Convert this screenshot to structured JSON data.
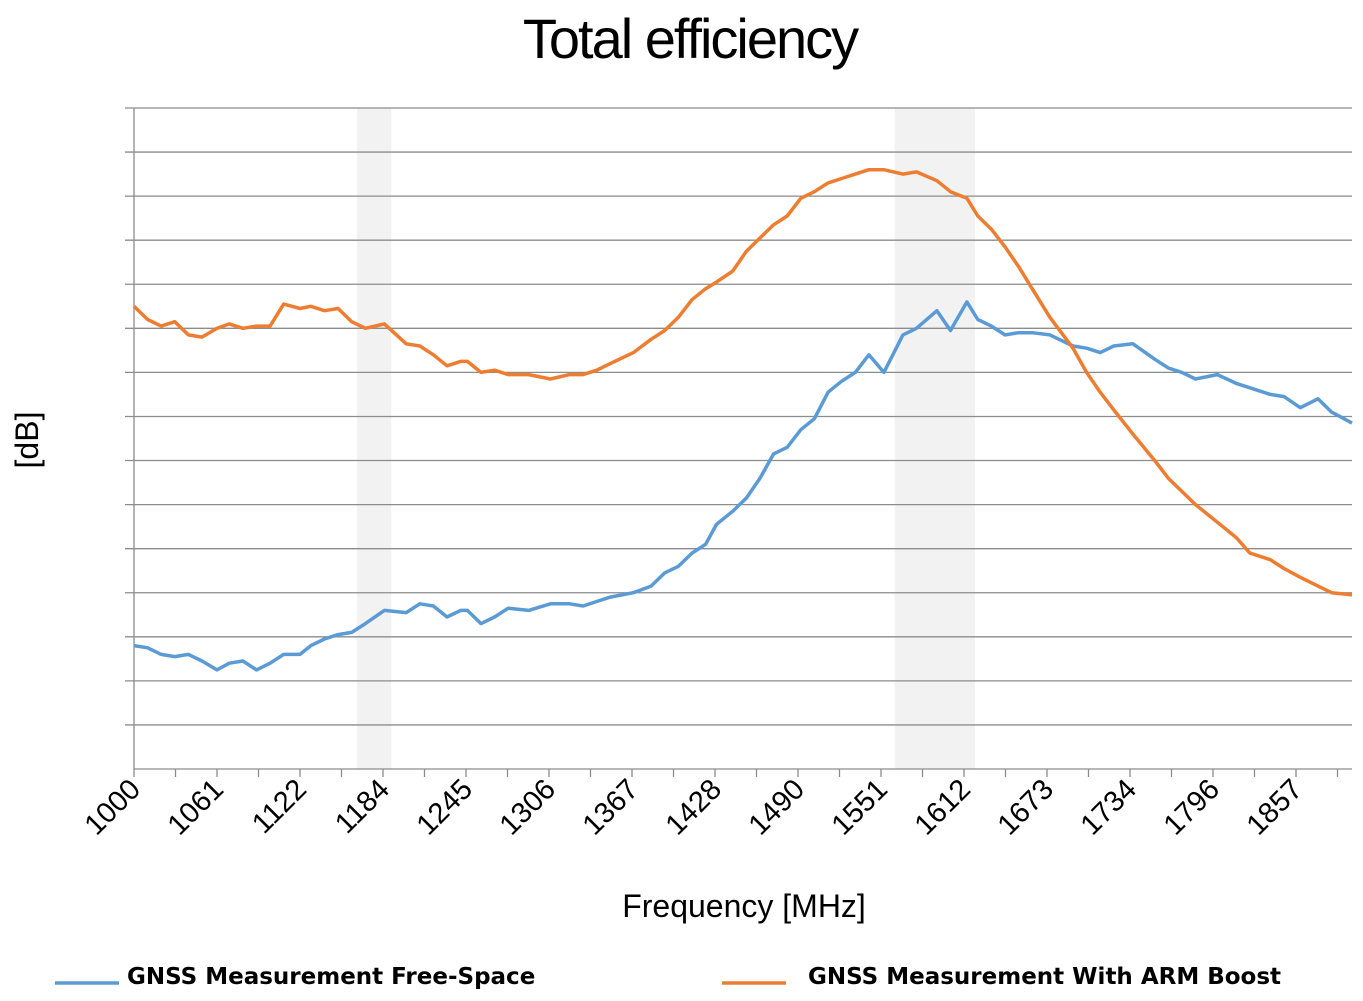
{
  "chart_data": {
    "type": "line",
    "title": "Total efficiency",
    "xlabel": "Frequency [MHz]",
    "ylabel": "[dB]",
    "xlim": [
      1000,
      1895
    ],
    "ylim": [
      0,
      15
    ],
    "grid": "horizontal",
    "legend_position": "bottom",
    "x_tick_labels": [
      "1000",
      "1061",
      "1122",
      "1184",
      "1245",
      "1306",
      "1367",
      "1428",
      "1490",
      "1551",
      "1612",
      "1673",
      "1734",
      "1796",
      "1857"
    ],
    "highlight_bands": [
      [
        1164,
        1189
      ],
      [
        1559,
        1618
      ]
    ],
    "series": [
      {
        "name": "GNSS Measurement Free-Space",
        "color": "#5b9bd5",
        "x": [
          1000,
          1010,
          1020,
          1030,
          1040,
          1050,
          1061,
          1070,
          1080,
          1090,
          1100,
          1110,
          1122,
          1130,
          1140,
          1150,
          1160,
          1170,
          1184,
          1200,
          1210,
          1220,
          1230,
          1240,
          1245,
          1255,
          1265,
          1275,
          1290,
          1306,
          1320,
          1330,
          1340,
          1350,
          1367,
          1380,
          1390,
          1400,
          1410,
          1420,
          1428,
          1440,
          1450,
          1460,
          1470,
          1480,
          1490,
          1500,
          1510,
          1520,
          1530,
          1540,
          1551,
          1565,
          1575,
          1590,
          1600,
          1612,
          1620,
          1630,
          1640,
          1650,
          1660,
          1673,
          1690,
          1700,
          1710,
          1720,
          1734,
          1750,
          1760,
          1770,
          1780,
          1796,
          1810,
          1820,
          1835,
          1845,
          1857,
          1870,
          1880,
          1895
        ],
        "y": [
          2.8,
          2.75,
          2.6,
          2.55,
          2.6,
          2.45,
          2.25,
          2.4,
          2.45,
          2.25,
          2.4,
          2.6,
          2.6,
          2.8,
          2.95,
          3.05,
          3.1,
          3.3,
          3.6,
          3.55,
          3.75,
          3.7,
          3.45,
          3.6,
          3.6,
          3.3,
          3.45,
          3.65,
          3.6,
          3.75,
          3.75,
          3.7,
          3.8,
          3.9,
          4.0,
          4.15,
          4.45,
          4.6,
          4.9,
          5.1,
          5.55,
          5.85,
          6.15,
          6.6,
          7.15,
          7.3,
          7.7,
          7.95,
          8.55,
          8.8,
          9.0,
          9.4,
          9.0,
          9.85,
          10.0,
          10.4,
          9.95,
          10.6,
          10.2,
          10.05,
          9.85,
          9.9,
          9.9,
          9.85,
          9.6,
          9.55,
          9.45,
          9.6,
          9.65,
          9.3,
          9.1,
          9.0,
          8.85,
          8.95,
          8.75,
          8.65,
          8.5,
          8.45,
          8.2,
          8.4,
          8.1,
          7.85
        ]
      },
      {
        "name": "GNSS Measurement With ARM Boost",
        "color": "#ed7d31",
        "x": [
          1000,
          1010,
          1020,
          1030,
          1040,
          1050,
          1061,
          1070,
          1080,
          1090,
          1100,
          1110,
          1122,
          1130,
          1140,
          1150,
          1160,
          1170,
          1184,
          1200,
          1210,
          1220,
          1230,
          1240,
          1245,
          1255,
          1265,
          1275,
          1290,
          1306,
          1320,
          1330,
          1340,
          1350,
          1367,
          1380,
          1390,
          1400,
          1410,
          1420,
          1428,
          1440,
          1450,
          1460,
          1470,
          1480,
          1490,
          1500,
          1510,
          1520,
          1530,
          1540,
          1551,
          1565,
          1575,
          1590,
          1600,
          1612,
          1620,
          1630,
          1640,
          1650,
          1660,
          1673,
          1690,
          1700,
          1710,
          1720,
          1734,
          1750,
          1760,
          1770,
          1780,
          1796,
          1810,
          1820,
          1835,
          1845,
          1857,
          1870,
          1880,
          1895
        ],
        "y": [
          10.5,
          10.2,
          10.05,
          10.15,
          9.85,
          9.8,
          10.0,
          10.1,
          10.0,
          10.05,
          10.05,
          10.55,
          10.45,
          10.5,
          10.4,
          10.45,
          10.15,
          10.0,
          10.1,
          9.65,
          9.6,
          9.4,
          9.15,
          9.25,
          9.25,
          9.0,
          9.05,
          8.95,
          8.95,
          8.85,
          8.95,
          8.95,
          9.05,
          9.2,
          9.45,
          9.75,
          9.95,
          10.25,
          10.65,
          10.9,
          11.05,
          11.3,
          11.75,
          12.05,
          12.35,
          12.55,
          12.95,
          13.1,
          13.3,
          13.4,
          13.5,
          13.6,
          13.6,
          13.5,
          13.55,
          13.35,
          13.1,
          12.95,
          12.55,
          12.25,
          11.85,
          11.4,
          10.9,
          10.25,
          9.55,
          9.0,
          8.55,
          8.15,
          7.6,
          7.0,
          6.6,
          6.3,
          6.0,
          5.6,
          5.25,
          4.9,
          4.75,
          4.55,
          4.35,
          4.15,
          4.0,
          3.95
        ]
      }
    ]
  }
}
